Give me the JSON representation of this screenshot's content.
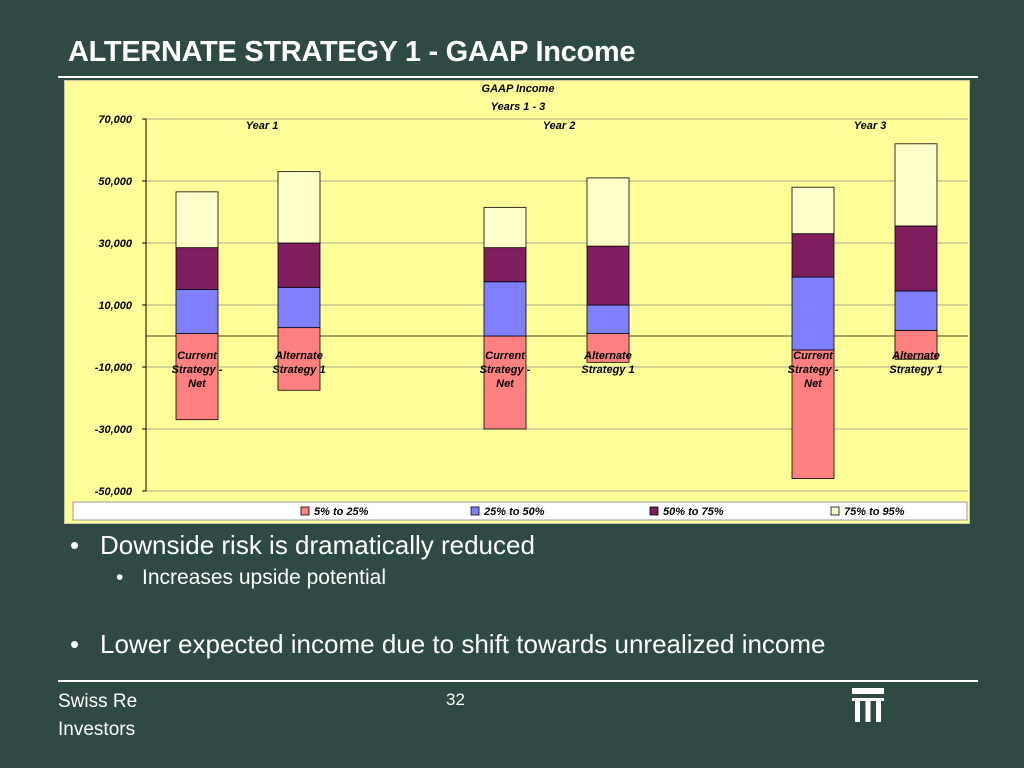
{
  "slide": {
    "title": "ALTERNATE STRATEGY 1 - GAAP Income",
    "bullets": [
      {
        "text": "Downside risk is dramatically reduced",
        "marker": "•"
      },
      {
        "text": "Increases upside potential",
        "marker": "•"
      },
      {
        "text": "Lower expected income due to shift towards unrealized income",
        "marker": "•"
      }
    ],
    "footer": {
      "line1": "Swiss Re",
      "line2": "Investors"
    },
    "page_number": "32",
    "logo_icon": "swiss-re-logo-icon"
  },
  "chart_data": {
    "type": "bar",
    "stacked": "floating-range",
    "title": "GAAP Income",
    "subtitle": "Years 1 - 3",
    "background": "#ffff99",
    "ylim": [
      -50000,
      70000
    ],
    "yticks": [
      "70,000",
      "50,000",
      "30,000",
      "10,000",
      "-10,000",
      "-30,000",
      "-50,000"
    ],
    "ytick_values": [
      70000,
      50000,
      30000,
      10000,
      -10000,
      -30000,
      -50000
    ],
    "groups": [
      "Year 1",
      "Year 2",
      "Year 3"
    ],
    "categories": [
      [
        "Current",
        "Strategy -",
        "Net"
      ],
      [
        "Alternate",
        "Strategy 1"
      ],
      [
        "Current",
        "Strategy -",
        "Net"
      ],
      [
        "Alternate",
        "Strategy 1"
      ],
      [
        "Current",
        "Strategy -",
        "Net"
      ],
      [
        "Alternate",
        "Strategy 1"
      ]
    ],
    "bar_group_index": [
      0,
      0,
      1,
      1,
      2,
      2
    ],
    "series": [
      {
        "name": "5% to 25%",
        "color": "#ff8080",
        "low": [
          -27000,
          -17500,
          -30000,
          -8500,
          -46000,
          -7500
        ],
        "high": [
          800,
          2700,
          0,
          800,
          -4500,
          1800
        ]
      },
      {
        "name": "25% to 50%",
        "color": "#8080ff",
        "low": [
          800,
          2700,
          0,
          800,
          -4500,
          1800
        ],
        "high": [
          15000,
          15700,
          17500,
          10000,
          19000,
          14500
        ]
      },
      {
        "name": "50% to 75%",
        "color": "#7f1f5f",
        "low": [
          15000,
          15700,
          17500,
          10000,
          19000,
          14500
        ],
        "high": [
          28500,
          30000,
          28500,
          29000,
          33000,
          35500
        ]
      },
      {
        "name": "75% to 95%",
        "color": "#ffffcc",
        "low": [
          28500,
          30000,
          28500,
          29000,
          33000,
          35500
        ],
        "high": [
          46500,
          53000,
          41500,
          51000,
          48000,
          62000
        ]
      }
    ],
    "grid": true,
    "legend": "bottom"
  }
}
